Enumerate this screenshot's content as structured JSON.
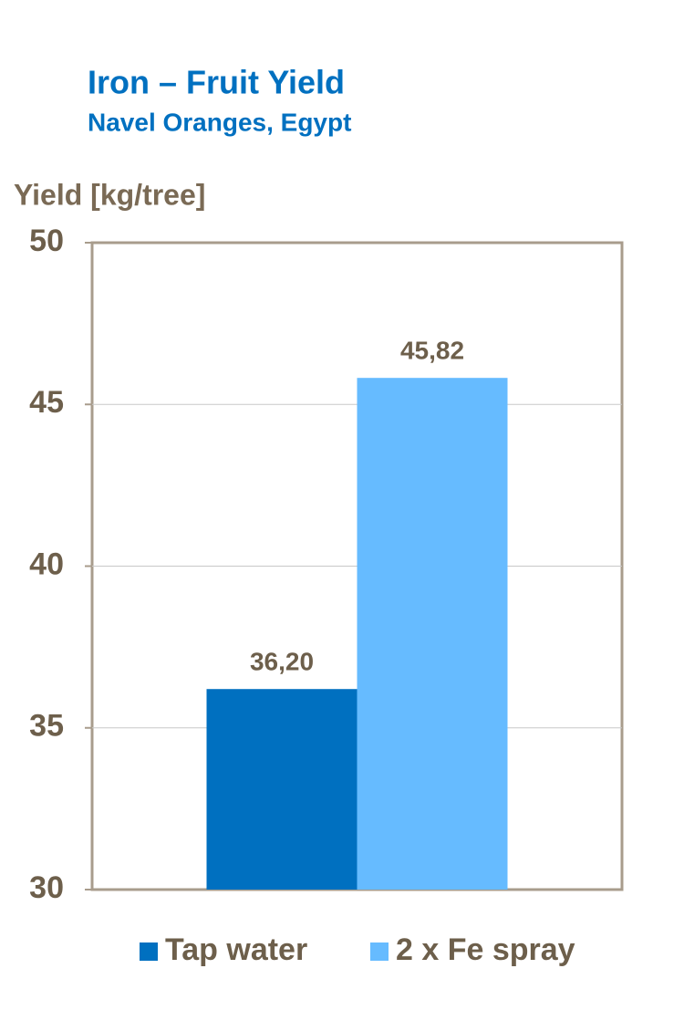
{
  "chart_data": {
    "type": "bar",
    "title": "Iron – Fruit Yield",
    "subtitle": "Navel Oranges, Egypt",
    "y_label": "Yield [kg/tree]",
    "categories": [
      null
    ],
    "series": [
      {
        "name": "Tap water",
        "color": "#0070c0",
        "values": [
          36.2
        ],
        "value_labels": [
          "36,20"
        ]
      },
      {
        "name": "2 x Fe spray",
        "color": "#66bbff",
        "values": [
          45.82
        ],
        "value_labels": [
          "45,82"
        ]
      }
    ],
    "ylim": [
      30,
      50
    ],
    "yticks": [
      30,
      35,
      40,
      45,
      50
    ],
    "grid": true
  }
}
